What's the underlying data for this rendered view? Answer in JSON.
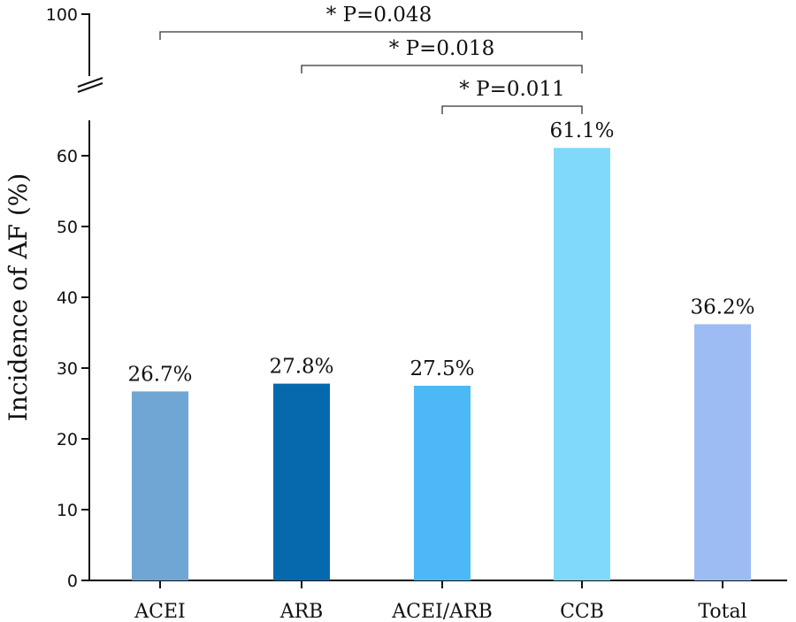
{
  "chart_data": {
    "type": "bar",
    "title": "",
    "xlabel": "",
    "ylabel": "Incidence of AF (%)",
    "ylim": [
      0,
      100
    ],
    "axis_break": [
      65,
      95
    ],
    "yticks": [
      0,
      10,
      20,
      30,
      40,
      50,
      60,
      100
    ],
    "categories": [
      "ACEI",
      "ARB",
      "ACEI/ARB",
      "CCB",
      "Total"
    ],
    "values": [
      26.7,
      27.8,
      27.5,
      61.1,
      36.2
    ],
    "value_labels": [
      "26.7%",
      "27.8%",
      "27.5%",
      "61.1%",
      "36.2%"
    ],
    "colors": [
      "#6fa6d3",
      "#0769ad",
      "#4cb9f6",
      "#80d9f8",
      "#9dbcf3"
    ],
    "comparisons": [
      {
        "from": "ACEI",
        "to": "CCB",
        "label": "* P=0.048"
      },
      {
        "from": "ARB",
        "to": "CCB",
        "label": "* P=0.018"
      },
      {
        "from": "ACEI/ARB",
        "to": "CCB",
        "label": "* P=0.011"
      }
    ]
  }
}
